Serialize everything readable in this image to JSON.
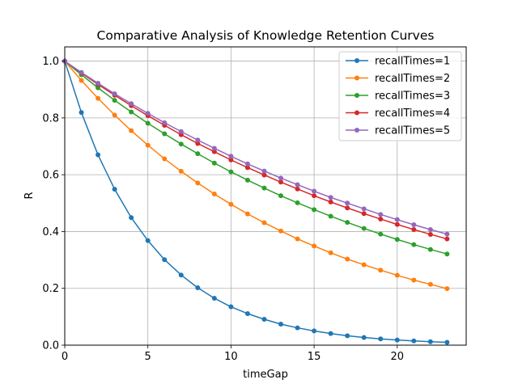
{
  "chart_data": {
    "type": "line",
    "title": "Comparative Analysis of Knowledge Retention Curves",
    "xlabel": "timeGap",
    "ylabel": "R",
    "xlim": [
      0,
      24.15
    ],
    "ylim": [
      0,
      1.05
    ],
    "xticks": [
      "0",
      "5",
      "10",
      "15",
      "20"
    ],
    "yticks": [
      "0.0",
      "0.2",
      "0.4",
      "0.6",
      "0.8",
      "1.0"
    ],
    "grid": true,
    "legend_position": "top-right",
    "x": [
      0,
      1,
      2,
      3,
      4,
      5,
      6,
      7,
      8,
      9,
      10,
      11,
      12,
      13,
      14,
      15,
      16,
      17,
      18,
      19,
      20,
      21,
      22,
      23
    ],
    "series": [
      {
        "name": "recallTimes=1",
        "color": "#1f77b4",
        "values": [
          1.0,
          0.819,
          0.67,
          0.549,
          0.449,
          0.368,
          0.301,
          0.247,
          0.202,
          0.165,
          0.135,
          0.111,
          0.091,
          0.074,
          0.061,
          0.05,
          0.041,
          0.033,
          0.027,
          0.022,
          0.018,
          0.015,
          0.012,
          0.01
        ]
      },
      {
        "name": "recallTimes=2",
        "color": "#ff7f0e",
        "values": [
          1.0,
          0.932,
          0.869,
          0.81,
          0.755,
          0.704,
          0.656,
          0.612,
          0.571,
          0.532,
          0.496,
          0.462,
          0.431,
          0.402,
          0.374,
          0.349,
          0.325,
          0.303,
          0.283,
          0.264,
          0.246,
          0.229,
          0.214,
          0.199
        ]
      },
      {
        "name": "recallTimes=3",
        "color": "#2ca02c",
        "values": [
          1.0,
          0.952,
          0.906,
          0.862,
          0.821,
          0.781,
          0.744,
          0.708,
          0.674,
          0.641,
          0.61,
          0.581,
          0.553,
          0.526,
          0.501,
          0.477,
          0.454,
          0.432,
          0.411,
          0.391,
          0.372,
          0.354,
          0.337,
          0.321
        ]
      },
      {
        "name": "recallTimes=4",
        "color": "#d62728",
        "values": [
          1.0,
          0.958,
          0.918,
          0.88,
          0.843,
          0.808,
          0.774,
          0.741,
          0.71,
          0.681,
          0.652,
          0.625,
          0.599,
          0.574,
          0.55,
          0.526,
          0.504,
          0.483,
          0.463,
          0.444,
          0.425,
          0.407,
          0.39,
          0.374
        ]
      },
      {
        "name": "recallTimes=5",
        "color": "#9467bd",
        "values": [
          1.0,
          0.96,
          0.922,
          0.885,
          0.85,
          0.816,
          0.783,
          0.752,
          0.722,
          0.693,
          0.665,
          0.638,
          0.613,
          0.588,
          0.565,
          0.542,
          0.52,
          0.5,
          0.48,
          0.46,
          0.442,
          0.424,
          0.407,
          0.391
        ]
      }
    ]
  }
}
